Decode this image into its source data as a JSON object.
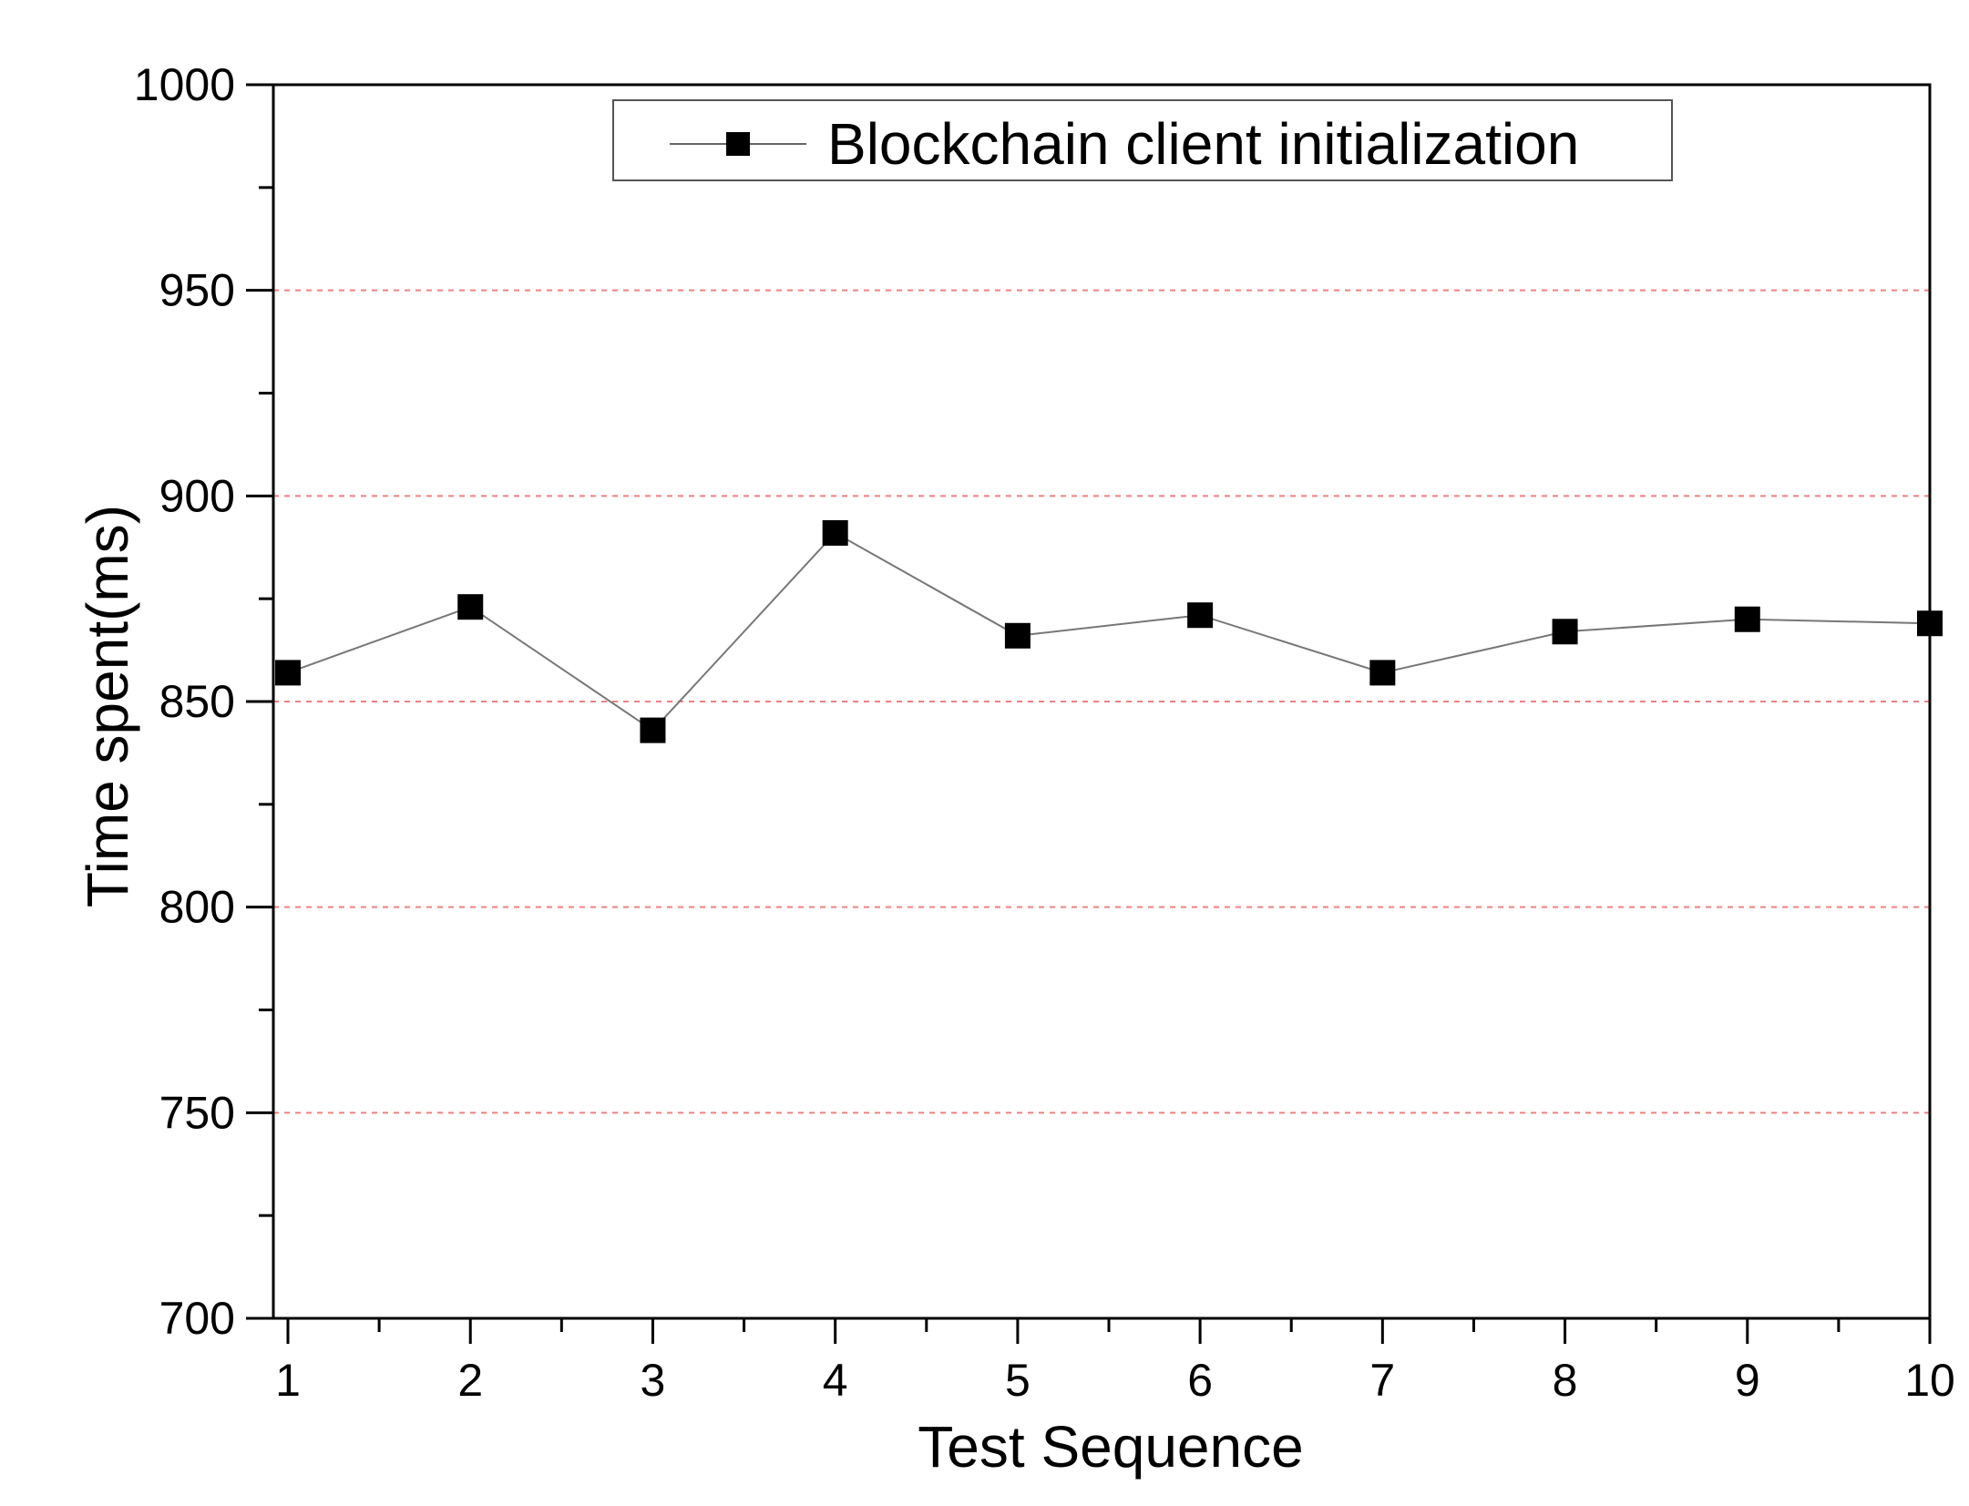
{
  "chart_data": {
    "type": "line",
    "title": "",
    "xlabel": "Test Sequence",
    "ylabel": "Time spent(ms)",
    "x": [
      1,
      2,
      3,
      4,
      5,
      6,
      7,
      8,
      9,
      10
    ],
    "series": [
      {
        "name": "Blockchain client initialization",
        "values": [
          857,
          873,
          843,
          891,
          866,
          871,
          857,
          867,
          870,
          869
        ],
        "color": "#000000",
        "marker": "square"
      }
    ],
    "xlim": [
      0.92,
      10
    ],
    "ylim": [
      700,
      1000
    ],
    "xticks": [
      "1",
      "2",
      "3",
      "4",
      "5",
      "6",
      "7",
      "8",
      "9",
      "10"
    ],
    "yticks": [
      "700",
      "750",
      "800",
      "850",
      "900",
      "950",
      "1000"
    ],
    "grid": {
      "y": true,
      "x": false,
      "style": "dashed",
      "color": "#f08080"
    },
    "legend_position": "top-center"
  }
}
